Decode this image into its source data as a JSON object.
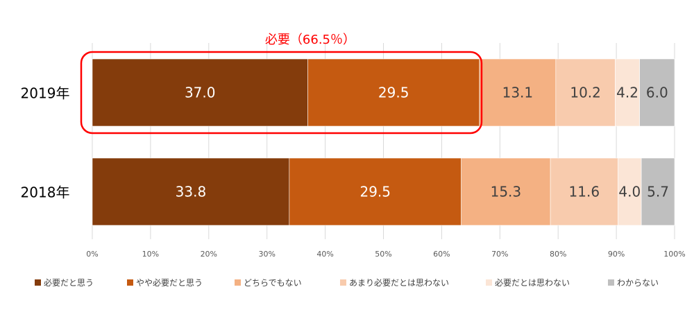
{
  "chart_data": {
    "type": "bar",
    "orientation": "horizontal",
    "stacked": "100%",
    "categories": [
      "2019年",
      "2018年"
    ],
    "series": [
      {
        "name": "必要だと思う",
        "values": [
          37.0,
          33.8
        ],
        "color": "#843c0c"
      },
      {
        "name": "やや必要だと思う",
        "values": [
          29.5,
          29.5
        ],
        "color": "#c55a11"
      },
      {
        "name": "どちらでもない",
        "values": [
          13.1,
          15.3
        ],
        "color": "#f4b183"
      },
      {
        "name": "あまり必要だとは思わない",
        "values": [
          10.2,
          11.6
        ],
        "color": "#f8cbad"
      },
      {
        "name": "必要だとは思わない",
        "values": [
          4.2,
          4.0
        ],
        "color": "#fbe5d6"
      },
      {
        "name": "わからない",
        "values": [
          6.0,
          5.7
        ],
        "color": "#bfbfbf"
      }
    ],
    "data_labels": [
      [
        "37.0",
        "29.5",
        "13.1",
        "10.2",
        "4.2",
        "6.0"
      ],
      [
        "33.8",
        "29.5",
        "15.3",
        "11.6",
        "4.0",
        "5.7"
      ]
    ],
    "xlim": [
      0,
      100
    ],
    "xticks": [
      "0%",
      "10%",
      "20%",
      "30%",
      "40%",
      "50%",
      "60%",
      "70%",
      "80%",
      "90%",
      "100%"
    ],
    "grid": true,
    "legend_position": "bottom",
    "annotation": {
      "text": "必要（66.5％）",
      "color": "#ff0000",
      "highlight_category": "2019年",
      "highlight_series": [
        "必要だと思う",
        "やや必要だと思う"
      ]
    },
    "label_colors": {
      "dark": "#ffffff",
      "light": "#404040"
    }
  }
}
